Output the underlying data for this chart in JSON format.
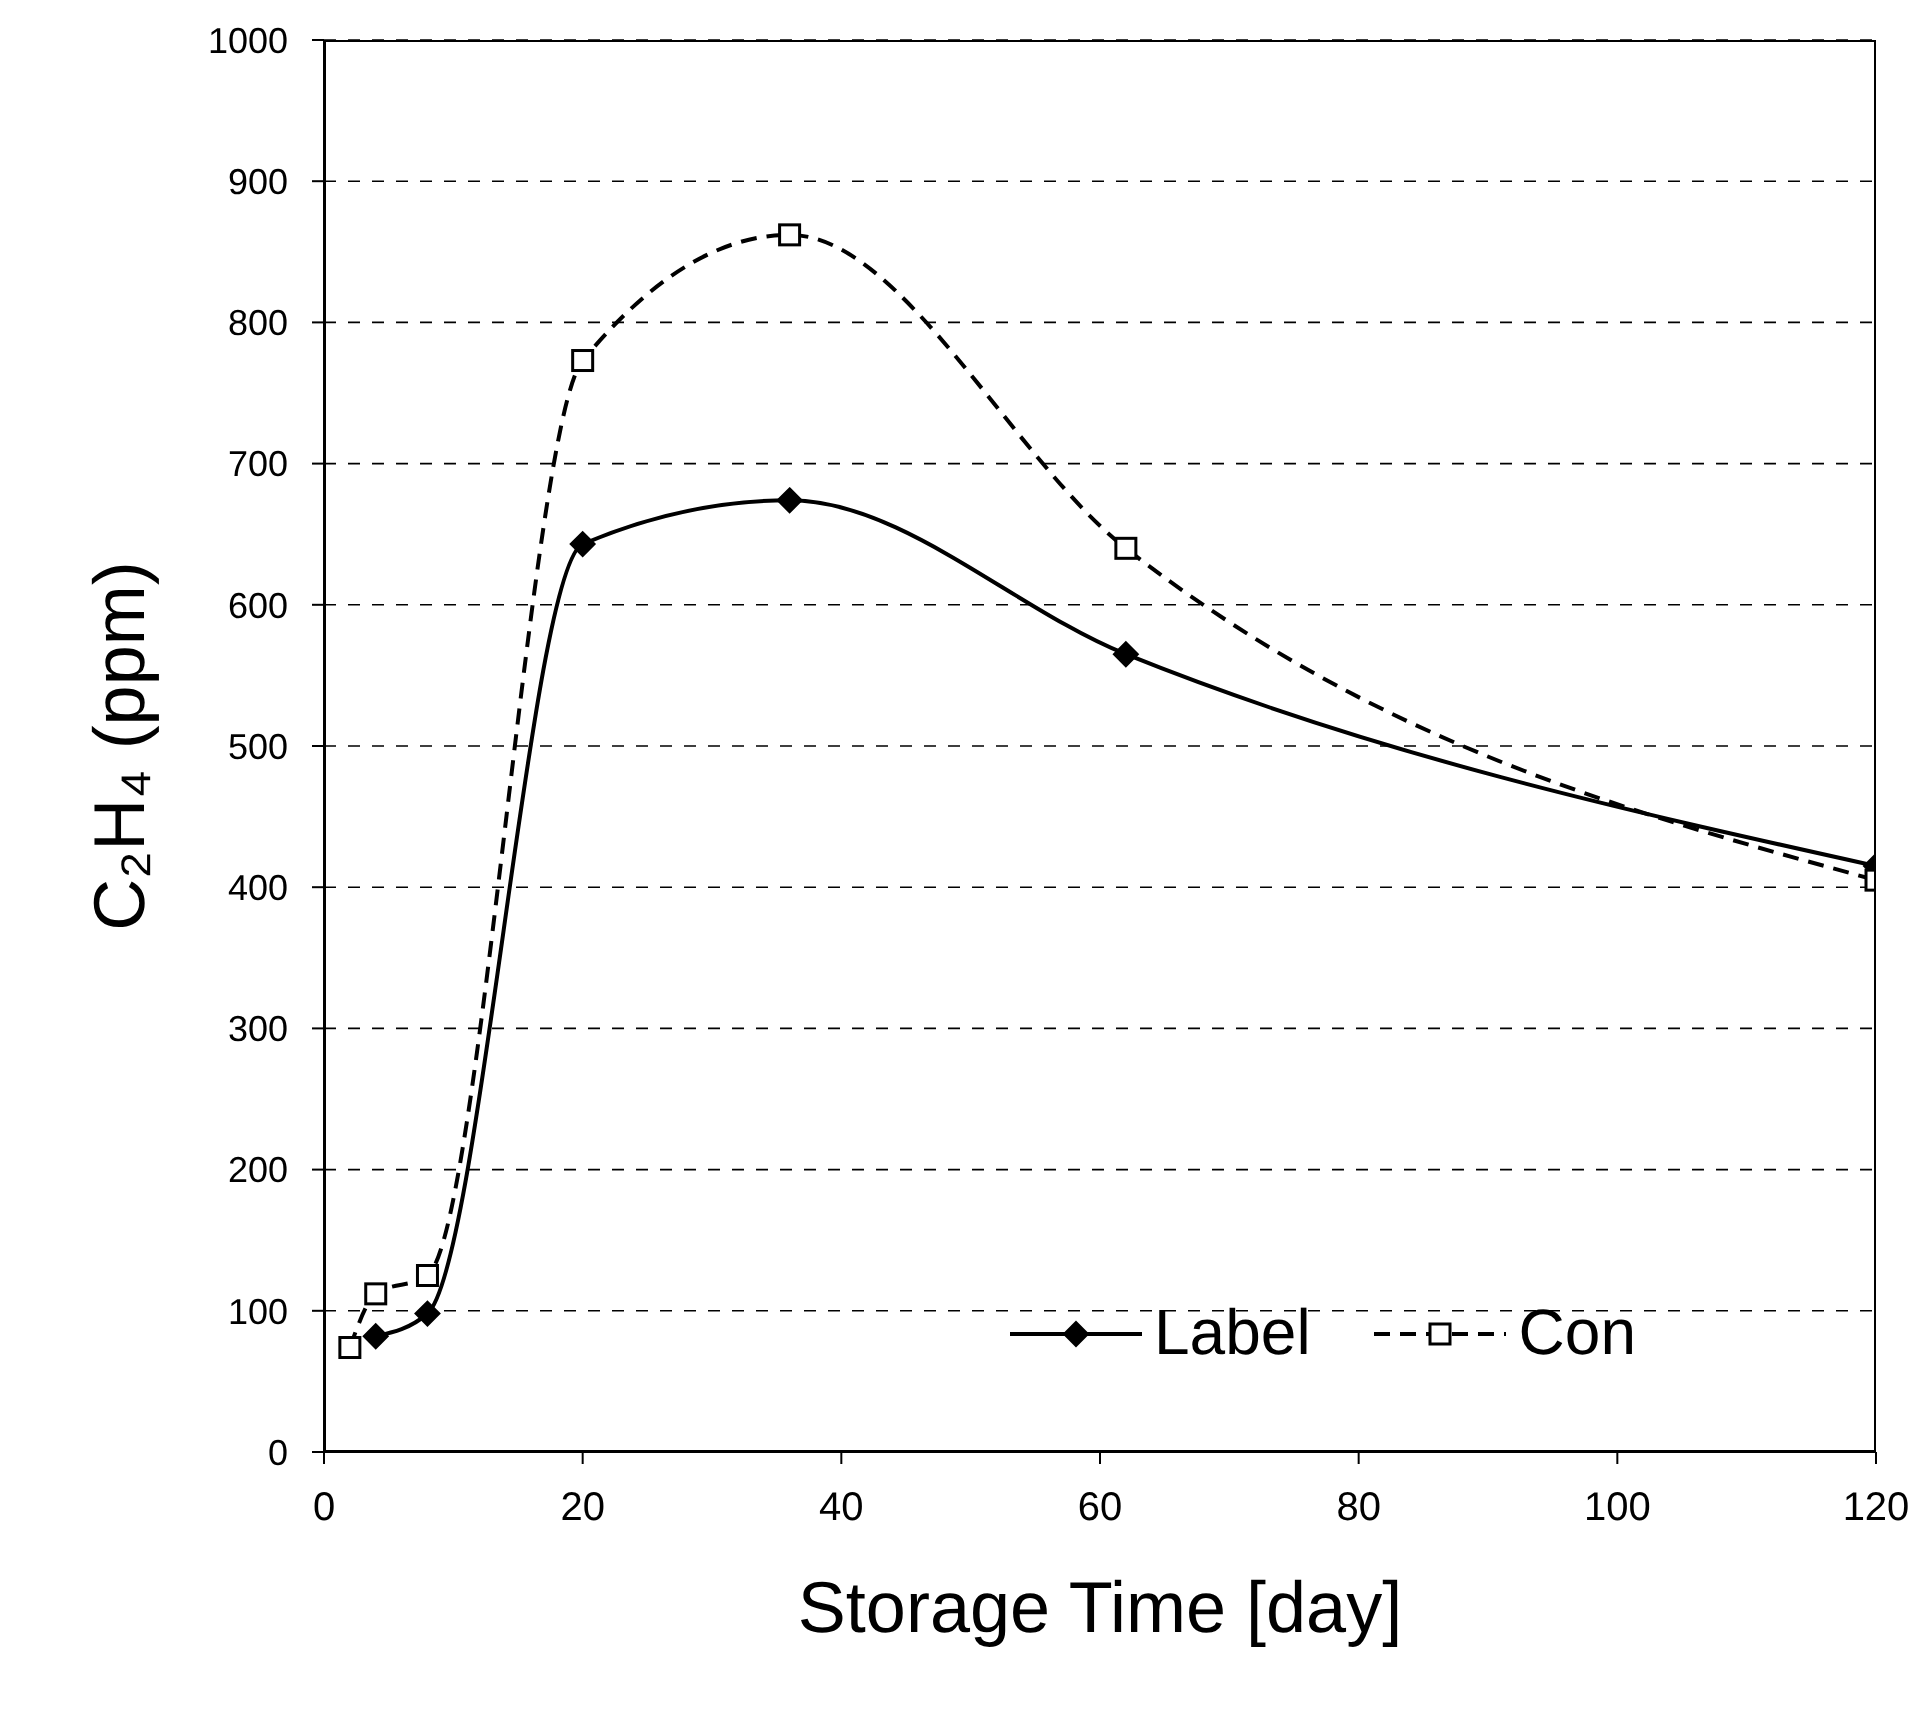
{
  "chart_data": {
    "type": "line",
    "xlabel": "Storage Time [day]",
    "ylabel": "C₂H₄ (ppm)",
    "x": [
      2,
      4,
      8,
      20,
      36,
      62,
      120
    ],
    "series": [
      {
        "name": "Label",
        "color": "#000000",
        "marker": "diamond",
        "line_style": "solid",
        "values": [
          null,
          82,
          98,
          643,
          674,
          565,
          415
        ]
      },
      {
        "name": "Con",
        "color": "#000000",
        "marker": "square",
        "line_style": "dashed",
        "values": [
          74,
          112,
          125,
          773,
          862,
          640,
          405
        ]
      }
    ],
    "xlim": [
      0,
      120
    ],
    "xticks": [
      0,
      20,
      40,
      60,
      80,
      100,
      120
    ],
    "ylim": [
      0,
      1000
    ],
    "yticks": [
      0,
      100,
      200,
      300,
      400,
      500,
      600,
      700,
      800,
      900,
      1000
    ],
    "grid": "y",
    "legend": "bottom right"
  }
}
